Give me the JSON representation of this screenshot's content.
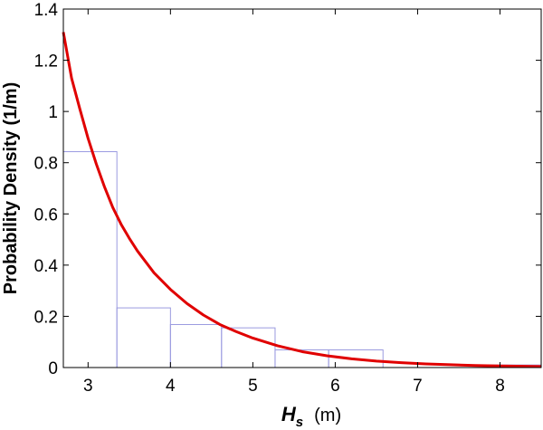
{
  "chart_data": {
    "type": "bar",
    "title": "",
    "ylabel": "Probability Density (1/m)",
    "xlabel": {
      "symbol": "H",
      "subscript": "s",
      "unit": "(m)"
    },
    "xlim": [
      2.7,
      8.5
    ],
    "ylim": [
      0,
      1.4
    ],
    "xticks": [
      3,
      4,
      5,
      6,
      7,
      8
    ],
    "yticks": [
      0,
      0.2,
      0.4,
      0.6,
      0.8,
      1,
      1.2,
      1.4
    ],
    "grid": false,
    "legend": "none",
    "histogram": {
      "color": "#9a9ae0",
      "bins": [
        {
          "x0": 2.7,
          "x1": 3.35,
          "value": 0.843
        },
        {
          "x0": 3.35,
          "x1": 4.0,
          "value": 0.233
        },
        {
          "x0": 4.0,
          "x1": 4.62,
          "value": 0.168
        },
        {
          "x0": 4.62,
          "x1": 5.27,
          "value": 0.155
        },
        {
          "x0": 5.27,
          "x1": 5.92,
          "value": 0.069
        },
        {
          "x0": 5.92,
          "x1": 6.58,
          "value": 0.069
        },
        {
          "x0": 6.58,
          "x1": 7.23,
          "value": 0.0
        },
        {
          "x0": 7.23,
          "x1": 7.88,
          "value": 0.0
        },
        {
          "x0": 7.88,
          "x1": 8.5,
          "value": 0.01
        }
      ]
    },
    "curve": {
      "color": "#e00000",
      "x": [
        2.7,
        2.8,
        2.9,
        3.0,
        3.1,
        3.2,
        3.3,
        3.4,
        3.5,
        3.6,
        3.8,
        4.0,
        4.2,
        4.4,
        4.6,
        4.8,
        5.0,
        5.3,
        5.6,
        5.9,
        6.2,
        6.5,
        6.8,
        7.1,
        7.4,
        7.7,
        8.0,
        8.3,
        8.5
      ],
      "y": [
        1.31,
        1.13,
        1.01,
        0.895,
        0.795,
        0.705,
        0.625,
        0.56,
        0.505,
        0.455,
        0.37,
        0.305,
        0.25,
        0.205,
        0.168,
        0.14,
        0.115,
        0.085,
        0.062,
        0.046,
        0.034,
        0.025,
        0.019,
        0.014,
        0.011,
        0.008,
        0.006,
        0.005,
        0.004
      ]
    }
  }
}
